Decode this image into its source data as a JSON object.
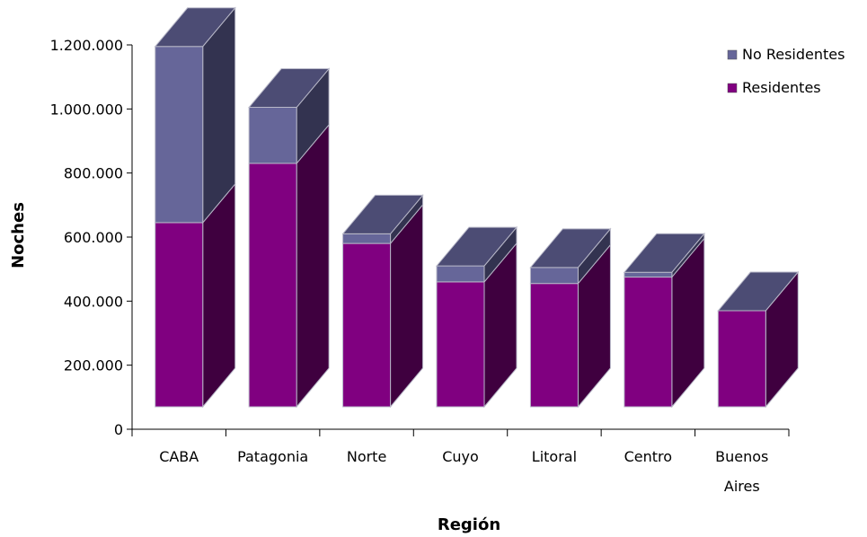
{
  "chart_data": {
    "type": "bar",
    "stacked": true,
    "style": "3d",
    "xlabel": "Región",
    "ylabel": "Noches",
    "categories": [
      [
        "CABA"
      ],
      [
        "Patagonia"
      ],
      [
        "Norte"
      ],
      [
        "Cuyo"
      ],
      [
        "Litoral"
      ],
      [
        "Centro"
      ],
      [
        "Buenos",
        "Aires"
      ]
    ],
    "series": [
      {
        "name": "Residentes",
        "values": [
          575000,
          760000,
          510000,
          390000,
          385000,
          405000,
          300000
        ],
        "color": "#800080",
        "side_color": "#3f003f",
        "top_color": "#5a4a7a"
      },
      {
        "name": "No Residentes",
        "values": [
          550000,
          175000,
          30000,
          50000,
          50000,
          15000,
          0
        ],
        "color": "#666699",
        "side_color": "#333350",
        "top_color": "#4c4c74"
      }
    ],
    "ylim": [
      0,
      1200000
    ],
    "yticks": [
      0,
      200000,
      400000,
      600000,
      800000,
      1000000,
      1200000
    ],
    "ytick_labels": [
      "0",
      "200.000",
      "400.000",
      "600.000",
      "800.000",
      "1.000.000",
      "1.200.000"
    ],
    "legend": {
      "position": "top-right",
      "order": [
        "No Residentes",
        "Residentes"
      ]
    },
    "grid": false
  }
}
